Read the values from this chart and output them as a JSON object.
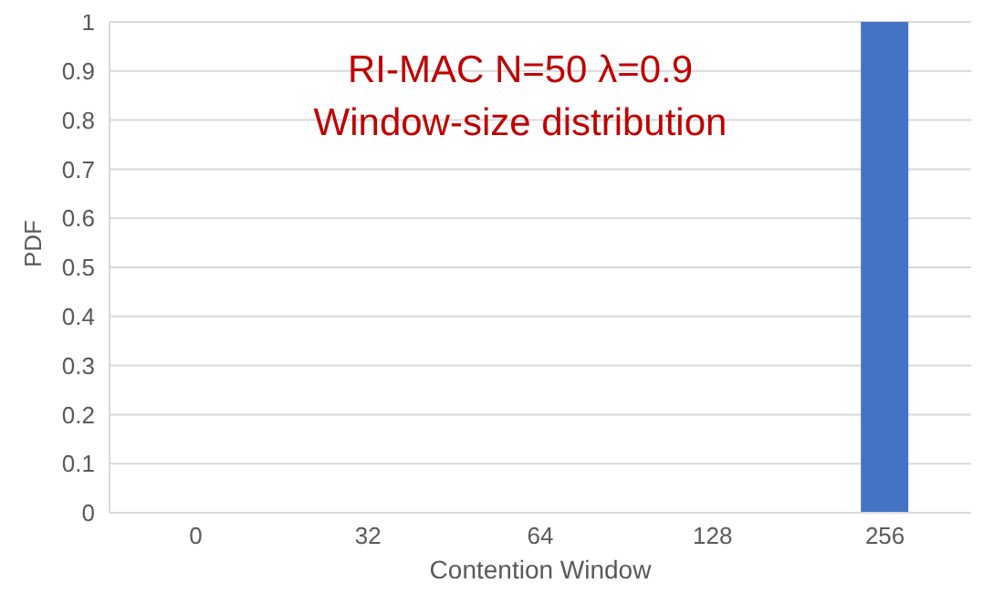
{
  "chart_data": {
    "type": "bar",
    "title": "RI-MAC N=50 λ=0.9\nWindow-size distribution",
    "xlabel": "Contention Window",
    "ylabel": "PDF",
    "categories": [
      "0",
      "32",
      "64",
      "128",
      "256"
    ],
    "values": [
      0,
      0,
      0,
      0,
      1
    ],
    "color": "#4472c4",
    "ylim": [
      0,
      1
    ],
    "yticks": [
      0,
      0.1,
      0.2,
      0.3,
      0.4,
      0.5,
      0.6,
      0.7,
      0.8,
      0.9,
      1
    ],
    "grid": "y",
    "legend": false
  }
}
